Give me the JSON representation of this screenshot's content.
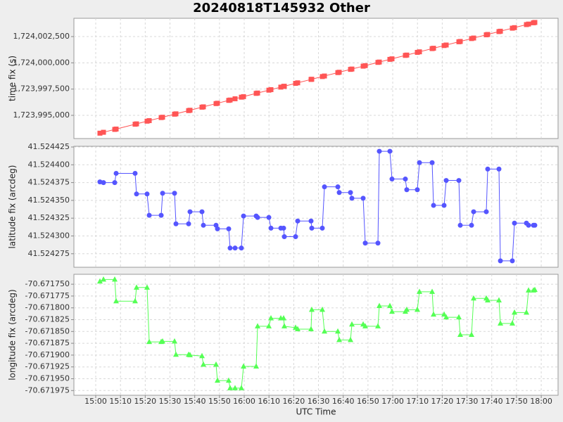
{
  "title": "20240818T145932 Other",
  "chart_data": [
    {
      "type": "line",
      "ylabel": "time fix (s)",
      "color": "#ff5555",
      "marker": "square",
      "grid": true,
      "x": [
        "15:01:42",
        "15:03:08",
        "15:07:41",
        "15:08:15",
        "15:15:55",
        "15:16:29",
        "15:20:45",
        "15:21:37",
        "15:26:27",
        "15:27:01",
        "15:31:51",
        "15:32:25",
        "15:37:32",
        "15:38:06",
        "15:42:56",
        "15:43:30",
        "15:48:37",
        "15:49:11",
        "15:53:44",
        "15:54:18",
        "15:56:18",
        "15:58:51",
        "15:59:43",
        "16:04:50",
        "16:05:24",
        "16:09:57",
        "16:10:48",
        "16:14:47",
        "16:15:55",
        "16:16:12",
        "16:20:45",
        "16:21:36",
        "16:27:00",
        "16:27:17",
        "16:31:33",
        "16:32:25",
        "16:37:49",
        "16:38:23",
        "16:42:56",
        "16:43:30",
        "16:48:03",
        "16:48:54",
        "16:54:01",
        "16:54:35",
        "16:58:51",
        "16:59:42",
        "17:05:06",
        "17:05:40",
        "17:09:56",
        "17:10:48",
        "17:15:55",
        "17:16:29",
        "17:20:45",
        "17:21:36",
        "17:26:43",
        "17:27:17",
        "17:31:50",
        "17:32:41",
        "17:37:48",
        "17:38:22",
        "17:42:55",
        "17:43:30",
        "17:48:19",
        "17:49:11",
        "17:54:01",
        "17:54:52",
        "17:56:51",
        "17:57:25"
      ],
      "values": [
        1723993302,
        1723993388,
        1723993661,
        1723993695,
        1723994155,
        1723994189,
        1723994445,
        1723994497,
        1723994787,
        1723994821,
        1723995111,
        1723995145,
        1723995452,
        1723995486,
        1723995776,
        1723995810,
        1723996117,
        1723996151,
        1723996424,
        1723996458,
        1723996578,
        1723996731,
        1723996783,
        1723997090,
        1723997124,
        1723997397,
        1723997448,
        1723997687,
        1723997755,
        1723997772,
        1723998045,
        1723998096,
        1723998420,
        1723998437,
        1723998693,
        1723998745,
        1723999069,
        1723999103,
        1723999376,
        1723999410,
        1723999683,
        1723999734,
        1724000041,
        1724000075,
        1724000331,
        1724000382,
        1724000706,
        1724000740,
        1724000996,
        1724001048,
        1724001355,
        1724001389,
        1724001645,
        1724001696,
        1724002003,
        1724002037,
        1724002310,
        1724002361,
        1724002668,
        1724002702,
        1724002975,
        1724003010,
        1724003299,
        1724003351,
        1724003641,
        1724003692,
        1724003811,
        1724003845
      ],
      "ylim": [
        1723992790,
        1724004241
      ],
      "yticks": [
        {
          "value": 1723995000,
          "label": "1,723,995,000"
        },
        {
          "value": 1723997500,
          "label": "1,723,997,500"
        },
        {
          "value": 1724000000,
          "label": "1,724,000,000"
        },
        {
          "value": 1724002500,
          "label": "1,724,002,500"
        }
      ]
    },
    {
      "type": "line",
      "ylabel": "latitude fix (arcdeg)",
      "color": "#5555ff",
      "marker": "circle",
      "grid": true,
      "x": [
        "15:01:42",
        "15:03:08",
        "15:07:41",
        "15:08:15",
        "15:15:55",
        "15:16:29",
        "15:20:45",
        "15:21:37",
        "15:26:27",
        "15:27:01",
        "15:31:51",
        "15:32:25",
        "15:37:32",
        "15:38:06",
        "15:42:56",
        "15:43:30",
        "15:48:37",
        "15:49:11",
        "15:53:44",
        "15:54:18",
        "15:56:18",
        "15:58:51",
        "15:59:43",
        "16:04:50",
        "16:05:24",
        "16:09:57",
        "16:10:48",
        "16:14:47",
        "16:15:55",
        "16:16:12",
        "16:20:45",
        "16:21:36",
        "16:27:00",
        "16:27:17",
        "16:31:33",
        "16:32:25",
        "16:37:49",
        "16:38:23",
        "16:42:56",
        "16:43:30",
        "16:48:03",
        "16:48:54",
        "16:54:01",
        "16:54:35",
        "16:58:51",
        "16:59:42",
        "17:05:06",
        "17:05:40",
        "17:09:56",
        "17:10:48",
        "17:15:55",
        "17:16:29",
        "17:20:45",
        "17:21:36",
        "17:26:43",
        "17:27:17",
        "17:31:50",
        "17:32:41",
        "17:37:48",
        "17:38:22",
        "17:42:55",
        "17:43:30",
        "17:48:19",
        "17:49:11",
        "17:54:01",
        "17:54:52",
        "17:56:51",
        "17:57:25"
      ],
      "values": [
        41.524376,
        41.524375,
        41.524375,
        41.524388,
        41.524388,
        41.524359,
        41.524359,
        41.524329,
        41.524329,
        41.52436,
        41.52436,
        41.524317,
        41.524317,
        41.524334,
        41.524334,
        41.524315,
        41.524315,
        41.52431,
        41.52431,
        41.524283,
        41.524283,
        41.524283,
        41.524328,
        41.524328,
        41.524326,
        41.524326,
        41.524311,
        41.524311,
        41.524311,
        41.524299,
        41.524299,
        41.524321,
        41.524321,
        41.524311,
        41.524311,
        41.524369,
        41.524369,
        41.524361,
        41.524361,
        41.524353,
        41.524353,
        41.52429,
        41.52429,
        41.524419,
        41.524419,
        41.52438,
        41.52438,
        41.524365,
        41.524365,
        41.524403,
        41.524403,
        41.524343,
        41.524343,
        41.524378,
        41.524378,
        41.524315,
        41.524315,
        41.524334,
        41.524334,
        41.524394,
        41.524394,
        41.524265,
        41.524265,
        41.524318,
        41.524318,
        41.524315,
        41.524315,
        41.524315
      ],
      "ylim": [
        41.524256,
        41.524426
      ],
      "yticks": [
        41.524275,
        {
          "value": 41.5243,
          "label": "41.524300"
        },
        41.524325,
        {
          "value": 41.52435,
          "label": "41.524350"
        },
        41.524375,
        {
          "value": 41.5244,
          "label": "41.524400"
        },
        41.524425
      ]
    },
    {
      "type": "line",
      "ylabel": "longitude fix (arcdeg)",
      "xlabel": "UTC Time",
      "color": "#55ff55",
      "marker": "triangle",
      "grid": true,
      "x": [
        "15:01:42",
        "15:03:08",
        "15:07:41",
        "15:08:15",
        "15:15:55",
        "15:16:29",
        "15:20:45",
        "15:21:37",
        "15:26:27",
        "15:27:01",
        "15:31:51",
        "15:32:25",
        "15:37:32",
        "15:38:06",
        "15:42:56",
        "15:43:30",
        "15:48:37",
        "15:49:11",
        "15:53:44",
        "15:54:18",
        "15:56:18",
        "15:58:51",
        "15:59:43",
        "16:04:50",
        "16:05:24",
        "16:09:57",
        "16:10:48",
        "16:14:47",
        "16:15:55",
        "16:16:12",
        "16:20:45",
        "16:21:36",
        "16:27:00",
        "16:27:17",
        "16:31:33",
        "16:32:25",
        "16:37:49",
        "16:38:23",
        "16:42:56",
        "16:43:30",
        "16:48:03",
        "16:48:54",
        "16:54:01",
        "16:54:35",
        "16:58:51",
        "16:59:42",
        "17:05:06",
        "17:05:40",
        "17:09:56",
        "17:10:48",
        "17:15:55",
        "17:16:29",
        "17:20:45",
        "17:21:36",
        "17:26:43",
        "17:27:17",
        "17:31:50",
        "17:32:41",
        "17:37:48",
        "17:38:22",
        "17:42:55",
        "17:43:30",
        "17:48:19",
        "17:49:11",
        "17:54:01",
        "17:54:52",
        "17:56:51",
        "17:57:25"
      ],
      "values": [
        -70.671744,
        -70.67174,
        -70.67174,
        -70.671786,
        -70.671786,
        -70.671757,
        -70.671757,
        -70.671872,
        -70.671872,
        -70.671871,
        -70.671871,
        -70.671899,
        -70.671899,
        -70.6719,
        -70.671902,
        -70.67192,
        -70.67192,
        -70.671954,
        -70.671954,
        -70.67197,
        -70.67197,
        -70.67197,
        -70.671924,
        -70.671924,
        -70.671839,
        -70.671839,
        -70.671822,
        -70.671822,
        -70.671822,
        -70.671839,
        -70.671842,
        -70.671845,
        -70.671845,
        -70.671804,
        -70.671804,
        -70.67185,
        -70.67185,
        -70.671868,
        -70.671868,
        -70.671835,
        -70.671835,
        -70.671839,
        -70.671839,
        -70.671796,
        -70.671796,
        -70.671808,
        -70.671808,
        -70.671804,
        -70.671804,
        -70.671766,
        -70.671766,
        -70.671814,
        -70.671814,
        -70.67182,
        -70.67182,
        -70.671857,
        -70.671857,
        -70.67178,
        -70.67178,
        -70.671784,
        -70.671784,
        -70.671833,
        -70.671833,
        -70.67181,
        -70.67181,
        -70.671763,
        -70.671763,
        -70.671762
      ],
      "ylim": [
        -70.671985,
        -70.671729
      ],
      "yticks": [
        -70.671975,
        {
          "value": -70.67195,
          "label": "-70.671950"
        },
        -70.671925,
        {
          "value": -70.6719,
          "label": "-70.671900"
        },
        -70.671875,
        {
          "value": -70.67185,
          "label": "-70.671850"
        },
        -70.671825,
        {
          "value": -70.6718,
          "label": "-70.671800"
        },
        -70.671775,
        {
          "value": -70.67175,
          "label": "-70.671750"
        }
      ],
      "xlim": [
        "14:51:11",
        "18:06:48"
      ],
      "xticks": [
        "15:00",
        "15:10",
        "15:20",
        "15:30",
        "15:40",
        "15:50",
        "16:00",
        "16:10",
        "16:20",
        "16:30",
        "16:40",
        "16:50",
        "17:00",
        "17:10",
        "17:20",
        "17:30",
        "17:40",
        "17:50",
        "18:00"
      ]
    }
  ]
}
